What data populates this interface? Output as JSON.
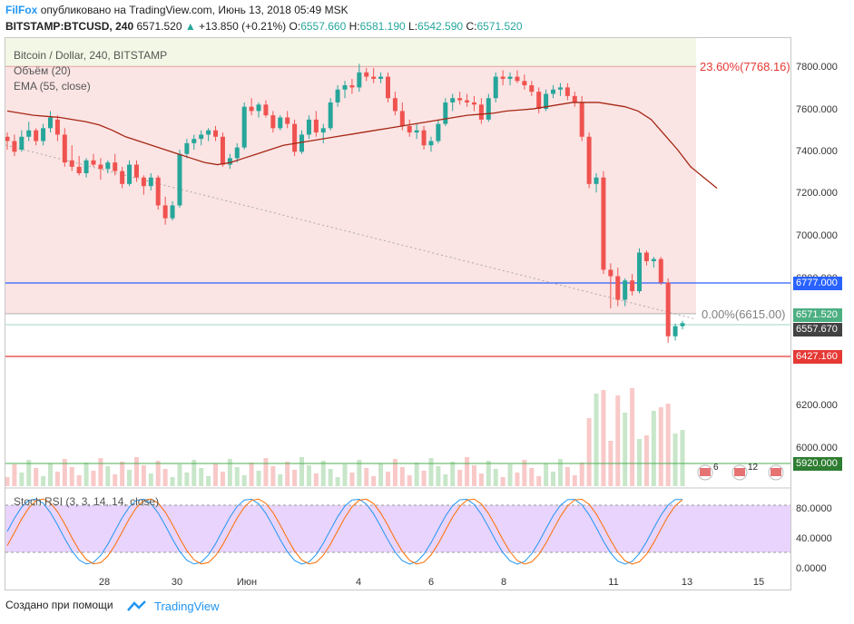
{
  "header": {
    "author": "FilFox",
    "published_text": "опубликовано на TradingView.com, Июнь 13, 2018 05:49 MSK",
    "symbol": "BITSTAMP:BTCUSD, 240",
    "last": "6571.520",
    "change": "+13.850 (+0.21%)",
    "o_label": "O:",
    "o_value": "6557.660",
    "h_label": "H:",
    "h_value": "6581.190",
    "l_label": "L:",
    "l_value": "6542.590",
    "c_label": "C:",
    "c_value": "6571.520"
  },
  "legend": {
    "title": "Bitcoin / Dollar, 240, BITSTAMP",
    "volume": "Объём (20)",
    "ema": "EMA (55, close)",
    "stoch": "Stoch RSI (3, 3, 14, 14, close)"
  },
  "fib": {
    "level_236": "23.60%(7768.16)",
    "level_0": "0.00%(6615.00)"
  },
  "price_axis": {
    "ticks": [
      "7800.000",
      "7600.000",
      "7400.000",
      "7200.000",
      "7000.000",
      "6800.000",
      "6200.000",
      "6000.000"
    ],
    "label_blue": "6777.000",
    "label_green": "6571.520",
    "label_dark": "6557.670",
    "label_red": "6427.160",
    "label_volume": "5920.000"
  },
  "stoch_axis": {
    "ticks": [
      "80.0000",
      "40.0000",
      "0.0000"
    ]
  },
  "time_axis": {
    "ticks": [
      "28",
      "30",
      "Июн",
      "4",
      "6",
      "8",
      "11",
      "13",
      "15"
    ]
  },
  "events": [
    "6",
    "12",
    ""
  ],
  "footer": {
    "created_with": "Создано при помощи",
    "brand": "TradingView"
  },
  "colors": {
    "bull": "#26a69a",
    "bear": "#ef5350",
    "ema": "#a52714",
    "hline_blue": "#2962ff",
    "hline_red": "#e53935",
    "fib_zone": "#fbe4e4",
    "fib_top_zone": "#f3f8e6",
    "stoch_band": "#e8d4fc"
  },
  "chart_data": {
    "type": "candlestick",
    "price_range": [
      5900,
      7900
    ],
    "candles": [
      [
        7440,
        7460,
        7380,
        7420
      ],
      [
        7420,
        7450,
        7350,
        7370
      ],
      [
        7380,
        7470,
        7370,
        7440
      ],
      [
        7440,
        7510,
        7420,
        7470
      ],
      [
        7470,
        7480,
        7400,
        7420
      ],
      [
        7420,
        7500,
        7400,
        7480
      ],
      [
        7480,
        7560,
        7460,
        7530
      ],
      [
        7520,
        7540,
        7420,
        7450
      ],
      [
        7450,
        7480,
        7300,
        7320
      ],
      [
        7330,
        7400,
        7280,
        7300
      ],
      [
        7300,
        7350,
        7260,
        7270
      ],
      [
        7270,
        7340,
        7250,
        7330
      ],
      [
        7330,
        7360,
        7300,
        7310
      ],
      [
        7310,
        7340,
        7240,
        7290
      ],
      [
        7290,
        7330,
        7270,
        7320
      ],
      [
        7320,
        7360,
        7260,
        7280
      ],
      [
        7280,
        7300,
        7200,
        7220
      ],
      [
        7220,
        7330,
        7210,
        7310
      ],
      [
        7310,
        7330,
        7230,
        7250
      ],
      [
        7250,
        7260,
        7170,
        7210
      ],
      [
        7210,
        7270,
        7190,
        7250
      ],
      [
        7250,
        7260,
        7100,
        7120
      ],
      [
        7120,
        7160,
        7030,
        7060
      ],
      [
        7060,
        7140,
        7050,
        7120
      ],
      [
        7120,
        7380,
        7110,
        7360
      ],
      [
        7360,
        7430,
        7340,
        7410
      ],
      [
        7410,
        7450,
        7380,
        7430
      ],
      [
        7430,
        7470,
        7400,
        7450
      ],
      [
        7450,
        7480,
        7420,
        7470
      ],
      [
        7470,
        7490,
        7420,
        7440
      ],
      [
        7440,
        7460,
        7300,
        7310
      ],
      [
        7310,
        7360,
        7290,
        7340
      ],
      [
        7340,
        7410,
        7320,
        7390
      ],
      [
        7390,
        7600,
        7380,
        7580
      ],
      [
        7580,
        7620,
        7540,
        7560
      ],
      [
        7560,
        7600,
        7530,
        7590
      ],
      [
        7590,
        7610,
        7530,
        7540
      ],
      [
        7540,
        7560,
        7460,
        7480
      ],
      [
        7480,
        7540,
        7470,
        7530
      ],
      [
        7530,
        7560,
        7480,
        7500
      ],
      [
        7500,
        7520,
        7350,
        7370
      ],
      [
        7370,
        7470,
        7360,
        7450
      ],
      [
        7450,
        7540,
        7430,
        7520
      ],
      [
        7520,
        7560,
        7440,
        7460
      ],
      [
        7460,
        7500,
        7410,
        7480
      ],
      [
        7480,
        7620,
        7470,
        7600
      ],
      [
        7600,
        7680,
        7580,
        7660
      ],
      [
        7660,
        7700,
        7620,
        7680
      ],
      [
        7680,
        7710,
        7640,
        7670
      ],
      [
        7670,
        7780,
        7650,
        7740
      ],
      [
        7740,
        7760,
        7700,
        7720
      ],
      [
        7720,
        7760,
        7690,
        7710
      ],
      [
        7710,
        7740,
        7690,
        7720
      ],
      [
        7720,
        7740,
        7600,
        7620
      ],
      [
        7620,
        7650,
        7540,
        7560
      ],
      [
        7560,
        7600,
        7470,
        7490
      ],
      [
        7490,
        7520,
        7440,
        7460
      ],
      [
        7460,
        7500,
        7430,
        7470
      ],
      [
        7470,
        7490,
        7380,
        7400
      ],
      [
        7400,
        7440,
        7370,
        7420
      ],
      [
        7420,
        7520,
        7410,
        7500
      ],
      [
        7500,
        7620,
        7490,
        7600
      ],
      [
        7600,
        7640,
        7560,
        7620
      ],
      [
        7620,
        7650,
        7590,
        7610
      ],
      [
        7610,
        7640,
        7580,
        7600
      ],
      [
        7600,
        7630,
        7560,
        7590
      ],
      [
        7590,
        7620,
        7500,
        7520
      ],
      [
        7520,
        7640,
        7510,
        7620
      ],
      [
        7620,
        7740,
        7600,
        7720
      ],
      [
        7720,
        7750,
        7680,
        7710
      ],
      [
        7710,
        7740,
        7680,
        7720
      ],
      [
        7720,
        7750,
        7690,
        7700
      ],
      [
        7700,
        7730,
        7660,
        7680
      ],
      [
        7680,
        7700,
        7630,
        7650
      ],
      [
        7650,
        7670,
        7550,
        7570
      ],
      [
        7570,
        7660,
        7560,
        7640
      ],
      [
        7640,
        7680,
        7620,
        7660
      ],
      [
        7660,
        7690,
        7630,
        7670
      ],
      [
        7670,
        7690,
        7610,
        7630
      ],
      [
        7630,
        7650,
        7580,
        7600
      ],
      [
        7600,
        7630,
        7420,
        7440
      ],
      [
        7440,
        7460,
        7200,
        7220
      ],
      [
        7220,
        7270,
        7180,
        7250
      ],
      [
        7250,
        7280,
        6800,
        6820
      ],
      [
        6820,
        6850,
        6640,
        6790
      ],
      [
        6790,
        6830,
        6650,
        6680
      ],
      [
        6680,
        6780,
        6650,
        6770
      ],
      [
        6770,
        6800,
        6700,
        6720
      ],
      [
        6720,
        6920,
        6710,
        6900
      ],
      [
        6900,
        6910,
        6840,
        6860
      ],
      [
        6860,
        6880,
        6830,
        6870
      ],
      [
        6870,
        6880,
        6750,
        6760
      ],
      [
        6760,
        6780,
        6480,
        6510
      ],
      [
        6510,
        6570,
        6490,
        6557
      ],
      [
        6557,
        6582,
        6542,
        6571
      ]
    ],
    "ema55": [
      7560,
      7550,
      7540,
      7535,
      7530,
      7520,
      7510,
      7495,
      7470,
      7440,
      7420,
      7400,
      7380,
      7360,
      7340,
      7320,
      7310,
      7320,
      7340,
      7360,
      7380,
      7400,
      7410,
      7420,
      7430,
      7440,
      7450,
      7460,
      7470,
      7480,
      7490,
      7500,
      7510,
      7520,
      7530,
      7540,
      7545,
      7550,
      7560,
      7565,
      7570,
      7580,
      7590,
      7600,
      7600,
      7600,
      7590,
      7580,
      7560,
      7520,
      7450,
      7380,
      7300,
      7250,
      7200
    ]
  }
}
